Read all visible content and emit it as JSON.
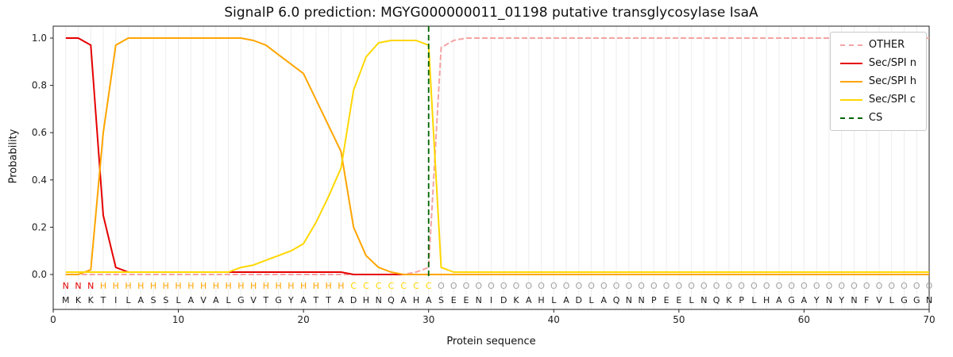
{
  "chart_data": {
    "type": "line",
    "title": "SignalP 6.0 prediction: MGYG000000011_01198 putative transglycosylase IsaA",
    "xlabel": "Protein sequence",
    "ylabel": "Probability",
    "xlim": [
      0,
      70
    ],
    "ylim": [
      -0.15,
      1.05
    ],
    "xticks": [
      0,
      10,
      20,
      30,
      40,
      50,
      60,
      70
    ],
    "yticks": [
      0.0,
      0.2,
      0.4,
      0.6,
      0.8,
      1.0
    ],
    "grid": "vertical line at every residue position",
    "legend_position": "upper right",
    "n_residues": 70,
    "sequence": "MKKTILASSLAVALGVTGYATTADHNQAHASEENIDKAHLADLAQNNPEELNQKPLHAGAYNYNFVLGGN",
    "region_labels": "NNNHHHHHHHHHHHHHHHHHHHHCCCCCCCOOOOOOOOOOOOOOOOOOOOOOOOOOOOOOOOOOOOOOOO",
    "region_colors": {
      "N": "#e50000",
      "H": "#ffa500",
      "C": "#ffd700",
      "O": "#a3a3a3"
    },
    "sequence_color": "#1a1a1a",
    "cs": {
      "label": "CS",
      "position": 30,
      "color": "#006400",
      "style": "dashed"
    },
    "series": [
      {
        "name": "OTHER",
        "color": "#f5a3a3",
        "style": "dashed",
        "values": [
          0,
          0,
          0,
          0,
          0,
          0,
          0,
          0,
          0,
          0,
          0,
          0,
          0,
          0,
          0,
          0,
          0,
          0,
          0,
          0,
          0,
          0,
          0,
          0,
          0,
          0,
          0,
          0,
          0.01,
          0.03,
          0.96,
          0.99,
          1,
          1,
          1,
          1,
          1,
          1,
          1,
          1,
          1,
          1,
          1,
          1,
          1,
          1,
          1,
          1,
          1,
          1,
          1,
          1,
          1,
          1,
          1,
          1,
          1,
          1,
          1,
          1,
          1,
          1,
          1,
          1,
          1,
          1,
          1,
          1,
          1,
          1
        ]
      },
      {
        "name": "Sec/SPI n",
        "color": "#e50000",
        "style": "solid",
        "values": [
          1,
          1,
          0.97,
          0.25,
          0.03,
          0.01,
          0.01,
          0.01,
          0.01,
          0.01,
          0.01,
          0.01,
          0.01,
          0.01,
          0.01,
          0.01,
          0.01,
          0.01,
          0.01,
          0.01,
          0.01,
          0.01,
          0.01,
          0,
          0,
          0,
          0,
          0,
          0,
          0,
          0,
          0,
          0,
          0,
          0,
          0,
          0,
          0,
          0,
          0,
          0,
          0,
          0,
          0,
          0,
          0,
          0,
          0,
          0,
          0,
          0,
          0,
          0,
          0,
          0,
          0,
          0,
          0,
          0,
          0,
          0,
          0,
          0,
          0,
          0,
          0,
          0,
          0,
          0,
          0
        ]
      },
      {
        "name": "Sec/SPI h",
        "color": "#ffa500",
        "style": "solid",
        "values": [
          0,
          0,
          0.02,
          0.6,
          0.97,
          1,
          1,
          1,
          1,
          1,
          1,
          1,
          1,
          1,
          1,
          0.99,
          0.97,
          0.93,
          0.89,
          0.85,
          0.74,
          0.63,
          0.52,
          0.2,
          0.08,
          0.03,
          0.01,
          0,
          0,
          0,
          0,
          0,
          0,
          0,
          0,
          0,
          0,
          0,
          0,
          0,
          0,
          0,
          0,
          0,
          0,
          0,
          0,
          0,
          0,
          0,
          0,
          0,
          0,
          0,
          0,
          0,
          0,
          0,
          0,
          0,
          0,
          0,
          0,
          0,
          0,
          0,
          0,
          0,
          0,
          0
        ]
      },
      {
        "name": "Sec/SPI c",
        "color": "#ffd700",
        "style": "solid",
        "values": [
          0.01,
          0.01,
          0.01,
          0.01,
          0.01,
          0.01,
          0.01,
          0.01,
          0.01,
          0.01,
          0.01,
          0.01,
          0.01,
          0.01,
          0.03,
          0.04,
          0.06,
          0.08,
          0.1,
          0.13,
          0.22,
          0.33,
          0.45,
          0.78,
          0.92,
          0.98,
          0.99,
          0.99,
          0.99,
          0.97,
          0.03,
          0.01,
          0.01,
          0.01,
          0.01,
          0.01,
          0.01,
          0.01,
          0.01,
          0.01,
          0.01,
          0.01,
          0.01,
          0.01,
          0.01,
          0.01,
          0.01,
          0.01,
          0.01,
          0.01,
          0.01,
          0.01,
          0.01,
          0.01,
          0.01,
          0.01,
          0.01,
          0.01,
          0.01,
          0.01,
          0.01,
          0.01,
          0.01,
          0.01,
          0.01,
          0.01,
          0.01,
          0.01,
          0.01,
          0.01
        ]
      }
    ]
  }
}
